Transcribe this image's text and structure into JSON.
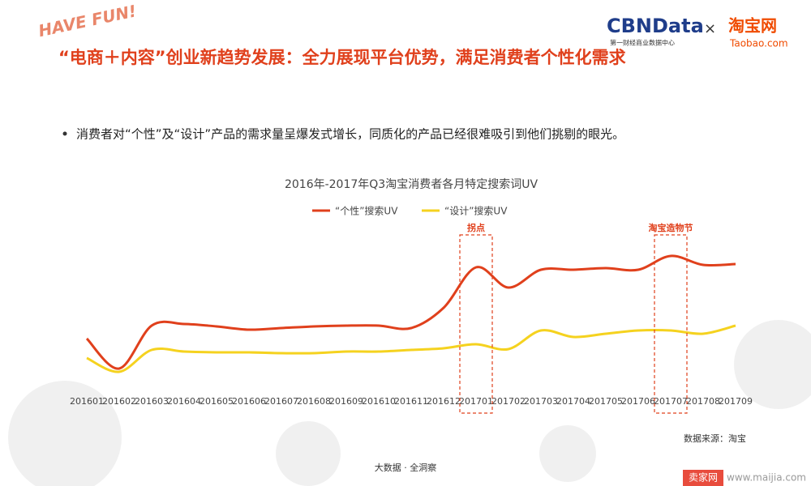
{
  "header": {
    "badge": "HAVE FUN!",
    "brand": "CBNData",
    "brand_sub": "第一财经商业数据中心",
    "times": "×",
    "partner": "淘宝网",
    "partner_sub": "Taobao.com",
    "title": "“电商＋内容”创业新趋势发展：全力展现平台优势，满足消费者个性化需求"
  },
  "bullet": "消费者对“个性”及“设计”产品的需求量呈爆发式增长，同质化的产品已经很难吸引到他们挑剔的眼光。",
  "chart_data": {
    "type": "line",
    "title": "2016年-2017年Q3淘宝消费者各月特定搜索词UV",
    "categories": [
      "201601",
      "201602",
      "201603",
      "201604",
      "201605",
      "201606",
      "201607",
      "201608",
      "201609",
      "201610",
      "201611",
      "201612",
      "201701",
      "201702",
      "201703",
      "201704",
      "201705",
      "201706",
      "201707",
      "201708",
      "201709"
    ],
    "series": [
      {
        "name": "“个性”搜索UV",
        "color": "#e0401c",
        "values": [
          72,
          35,
          88,
          90,
          87,
          83,
          85,
          87,
          88,
          88,
          85,
          110,
          160,
          135,
          157,
          157,
          159,
          157,
          174,
          163,
          164
        ]
      },
      {
        "name": "“设计”搜索UV",
        "color": "#f5d21f",
        "values": [
          48,
          31,
          58,
          56,
          55,
          55,
          54,
          54,
          56,
          56,
          58,
          60,
          65,
          59,
          82,
          74,
          78,
          82,
          82,
          78,
          88
        ]
      }
    ],
    "annotations": [
      {
        "label": "拐点",
        "at": "201701"
      },
      {
        "label": "淘宝造物节",
        "at": "201707"
      }
    ],
    "legend": "top"
  },
  "source": "数据来源：淘宝",
  "footer": "大数据 · 全洞察",
  "watermark": {
    "name": "卖家网",
    "url": "www.maijia.com"
  }
}
